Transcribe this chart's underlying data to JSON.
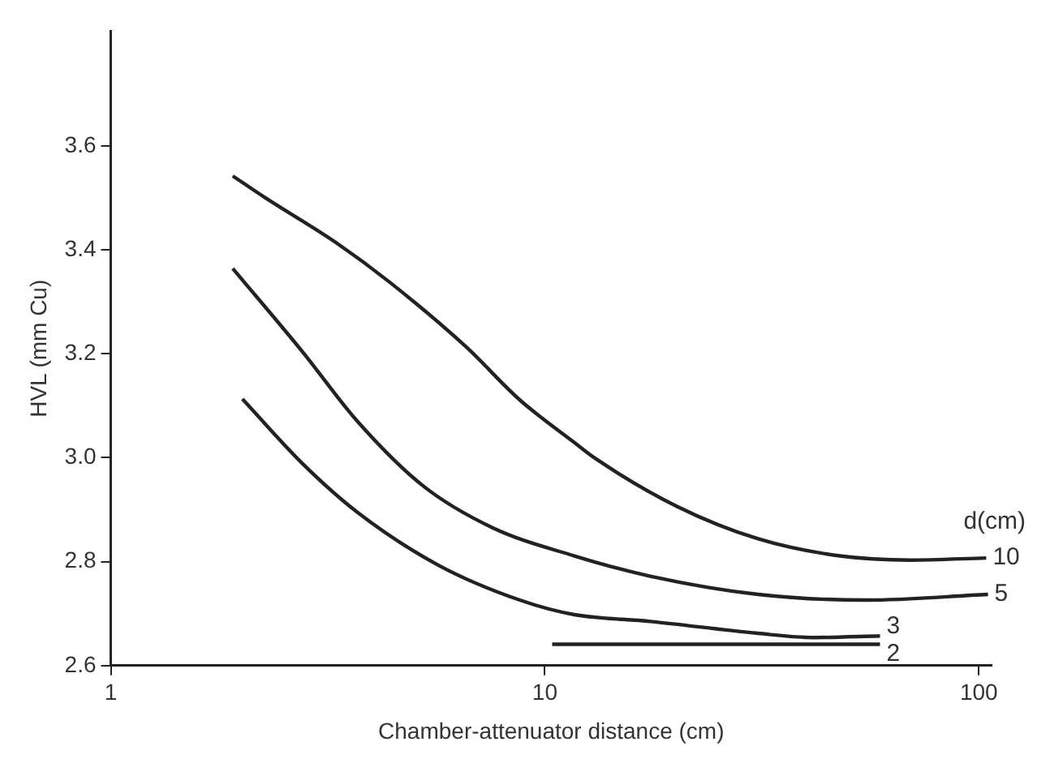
{
  "chart_data": {
    "type": "line",
    "xlabel": "Chamber-attenuator distance (cm)",
    "ylabel": "HVL (mm Cu)",
    "legend_title": "d(cm)",
    "log": "x",
    "xlim": [
      1,
      107
    ],
    "xticks": [
      1,
      10,
      100
    ],
    "ylim": [
      2.6,
      3.82
    ],
    "yticks": [
      2.6,
      2.8,
      {
        "value": 3,
        "label": "3.0"
      },
      3.2,
      3.4,
      3.6
    ],
    "grid": false,
    "legend": false,
    "marker": "none",
    "line_style": "solid",
    "series": [
      {
        "name": "10",
        "color": "#222222",
        "x": [
          1.91,
          2.27,
          3.3,
          4.4,
          6.57,
          8.76,
          11.7,
          13.1,
          20.2,
          31,
          47.8,
          69.4,
          104
        ],
        "values": [
          3.542,
          3.5,
          3.414,
          3.337,
          3.214,
          3.111,
          3.029,
          2.998,
          2.906,
          2.844,
          2.811,
          2.803,
          2.807
        ]
      },
      {
        "name": "5",
        "color": "#222222",
        "x": [
          1.91,
          2.77,
          3.7,
          5.22,
          7.59,
          11.7,
          17.5,
          31,
          55,
          105
        ],
        "values": [
          3.364,
          3.203,
          3.07,
          2.947,
          2.865,
          2.811,
          2.772,
          2.737,
          2.726,
          2.737
        ]
      },
      {
        "name": "3",
        "color": "#222222",
        "x": [
          2.01,
          2.77,
          3.7,
          5.69,
          8.76,
          11.7,
          17.5,
          31,
          41.7,
          59.2
        ],
        "values": [
          3.113,
          2.988,
          2.895,
          2.793,
          2.726,
          2.698,
          2.685,
          2.662,
          2.654,
          2.657
        ]
      },
      {
        "name": "2",
        "color": "#222222",
        "x": [
          10.4,
          59.2
        ],
        "values": [
          2.641,
          2.641
        ]
      }
    ]
  }
}
